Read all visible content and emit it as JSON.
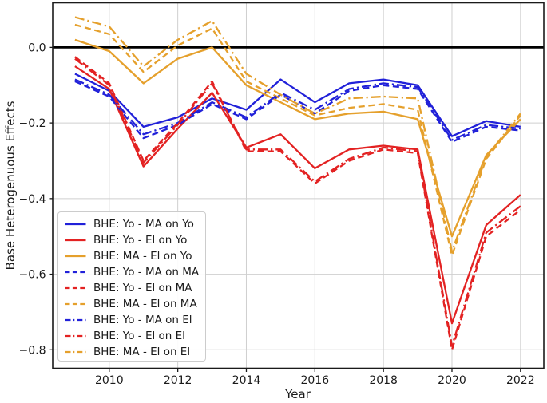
{
  "figure": {
    "xlabel": "Year",
    "ylabel": "Base Heterogenuous Effects"
  },
  "chart_data": {
    "type": "line",
    "title": "",
    "xlabel": "Year",
    "ylabel": "Base Heterogenuous Effects",
    "grid": true,
    "legend_position": "lower left",
    "xlim": [
      2008.35,
      2022.68
    ],
    "ylim": [
      -0.849,
      0.118
    ],
    "x_ticks": [
      2010,
      2012,
      2014,
      2016,
      2018,
      2020,
      2022
    ],
    "y_ticks": [
      {
        "v": 0.0,
        "label": "0.0"
      },
      {
        "v": -0.2,
        "label": "−0.2"
      },
      {
        "v": -0.4,
        "label": "−0.4"
      },
      {
        "v": -0.6,
        "label": "−0.6"
      },
      {
        "v": -0.8,
        "label": "−0.8"
      }
    ],
    "zero_line": {
      "value": 0.0,
      "color": "#000000"
    },
    "colors": {
      "blue": "#2121d9",
      "red": "#e32222",
      "orange": "#e5a02c",
      "grid": "#cfcfcf",
      "spine": "#1a1a1a"
    },
    "x": [
      2009,
      2010,
      2011,
      2012,
      2013,
      2014,
      2015,
      2016,
      2017,
      2018,
      2019,
      2020,
      2021,
      2022
    ],
    "series": [
      {
        "name": "BHE: Yo - MA on Yo",
        "color": "#2121d9",
        "style": "solid",
        "values": [
          -0.07,
          -0.115,
          -0.21,
          -0.185,
          -0.135,
          -0.165,
          -0.085,
          -0.145,
          -0.095,
          -0.085,
          -0.1,
          -0.235,
          -0.195,
          -0.21
        ]
      },
      {
        "name": "BHE: Yo - El on Yo",
        "color": "#e32222",
        "style": "solid",
        "values": [
          -0.05,
          -0.11,
          -0.315,
          -0.215,
          -0.12,
          -0.265,
          -0.23,
          -0.32,
          -0.27,
          -0.26,
          -0.27,
          -0.73,
          -0.47,
          -0.39
        ]
      },
      {
        "name": "BHE: MA - El on Yo",
        "color": "#e5a02c",
        "style": "solid",
        "values": [
          0.02,
          -0.01,
          -0.095,
          -0.03,
          0.0,
          -0.1,
          -0.145,
          -0.19,
          -0.175,
          -0.17,
          -0.19,
          -0.5,
          -0.285,
          -0.19
        ]
      },
      {
        "name": "BHE: Yo - MA on MA",
        "color": "#2121d9",
        "style": "dashed",
        "values": [
          -0.09,
          -0.13,
          -0.24,
          -0.205,
          -0.15,
          -0.19,
          -0.125,
          -0.175,
          -0.115,
          -0.1,
          -0.11,
          -0.25,
          -0.21,
          -0.22
        ]
      },
      {
        "name": "BHE: Yo - El on MA",
        "color": "#e32222",
        "style": "dashed",
        "values": [
          -0.025,
          -0.095,
          -0.3,
          -0.2,
          -0.09,
          -0.275,
          -0.275,
          -0.36,
          -0.3,
          -0.27,
          -0.28,
          -0.8,
          -0.5,
          -0.43
        ]
      },
      {
        "name": "BHE: MA - El on MA",
        "color": "#e5a02c",
        "style": "dashed",
        "values": [
          0.06,
          0.035,
          -0.065,
          0.005,
          0.05,
          -0.09,
          -0.135,
          -0.18,
          -0.16,
          -0.15,
          -0.165,
          -0.55,
          -0.295,
          -0.18
        ]
      },
      {
        "name": "BHE: Yo - MA on El",
        "color": "#2121d9",
        "style": "dashdot",
        "values": [
          -0.085,
          -0.125,
          -0.23,
          -0.2,
          -0.145,
          -0.185,
          -0.12,
          -0.165,
          -0.11,
          -0.095,
          -0.105,
          -0.245,
          -0.205,
          -0.215
        ]
      },
      {
        "name": "BHE: Yo - El on El",
        "color": "#e32222",
        "style": "dashdot",
        "values": [
          -0.03,
          -0.1,
          -0.305,
          -0.205,
          -0.095,
          -0.27,
          -0.27,
          -0.355,
          -0.295,
          -0.265,
          -0.275,
          -0.79,
          -0.49,
          -0.42
        ]
      },
      {
        "name": "BHE: MA - El on El",
        "color": "#e5a02c",
        "style": "dashdot",
        "values": [
          0.08,
          0.055,
          -0.05,
          0.02,
          0.07,
          -0.07,
          -0.125,
          -0.175,
          -0.135,
          -0.13,
          -0.135,
          -0.54,
          -0.29,
          -0.175
        ]
      }
    ]
  }
}
